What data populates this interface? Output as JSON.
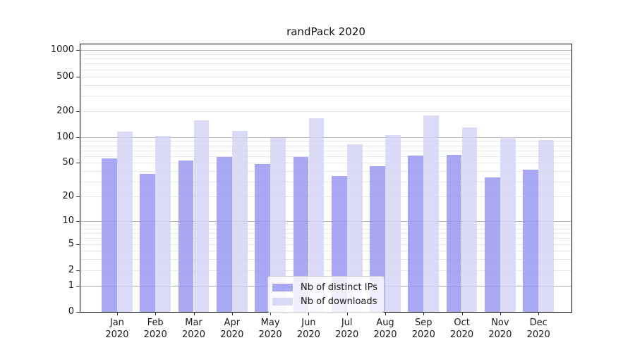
{
  "title": "randPack 2020",
  "chart_data": {
    "type": "bar",
    "title": "randPack 2020",
    "y_scale": "log1p",
    "ylim": [
      0,
      1216
    ],
    "grid": true,
    "categories": [
      "Jan 2020",
      "Feb 2020",
      "Mar 2020",
      "Apr 2020",
      "May 2020",
      "Jun 2020",
      "Jul 2020",
      "Aug 2020",
      "Sep 2020",
      "Oct 2020",
      "Nov 2020",
      "Dec 2020"
    ],
    "month_labels": [
      "Jan",
      "Feb",
      "Mar",
      "Apr",
      "May",
      "Jun",
      "Jul",
      "Aug",
      "Sep",
      "Oct",
      "Nov",
      "Dec"
    ],
    "year_label": "2020",
    "series": [
      {
        "name": "Nb of distinct IPs",
        "color": "#9292f1",
        "fill": "rgba(146,146,241,0.8)",
        "values": [
          56,
          37,
          53,
          59,
          49,
          59,
          35,
          46,
          61,
          62,
          34,
          42
        ]
      },
      {
        "name": "Nb of downloads",
        "color": "#d2d2f6",
        "fill": "rgba(210,210,246,0.8)",
        "values": [
          116,
          103,
          156,
          118,
          98,
          166,
          82,
          106,
          179,
          129,
          100,
          92
        ]
      }
    ],
    "y_ticks": [
      0,
      1,
      2,
      5,
      10,
      20,
      50,
      100,
      200,
      500,
      1000
    ],
    "major_gridlines": [
      1,
      10,
      100,
      1000
    ],
    "minor_gridlines": [
      2,
      3,
      4,
      5,
      6,
      7,
      8,
      9,
      20,
      30,
      40,
      50,
      60,
      70,
      80,
      90,
      200,
      300,
      400,
      500,
      600,
      700,
      800,
      900
    ],
    "legend_position": "lower center"
  },
  "legend": {
    "items": [
      {
        "label": "Nb of distinct IPs"
      },
      {
        "label": "Nb of downloads"
      }
    ]
  },
  "colors": {
    "bar_ips": "rgba(146,146,241,0.8)",
    "bar_downloads": "rgba(210,210,246,0.8)",
    "grid_major": "#b0b0b0",
    "grid_minor": "#e8e8e8",
    "spine": "#000000",
    "text": "#1a1a1a",
    "legend_border": "#cccccc",
    "legend_bg": "rgba(255,255,255,0.8)"
  }
}
